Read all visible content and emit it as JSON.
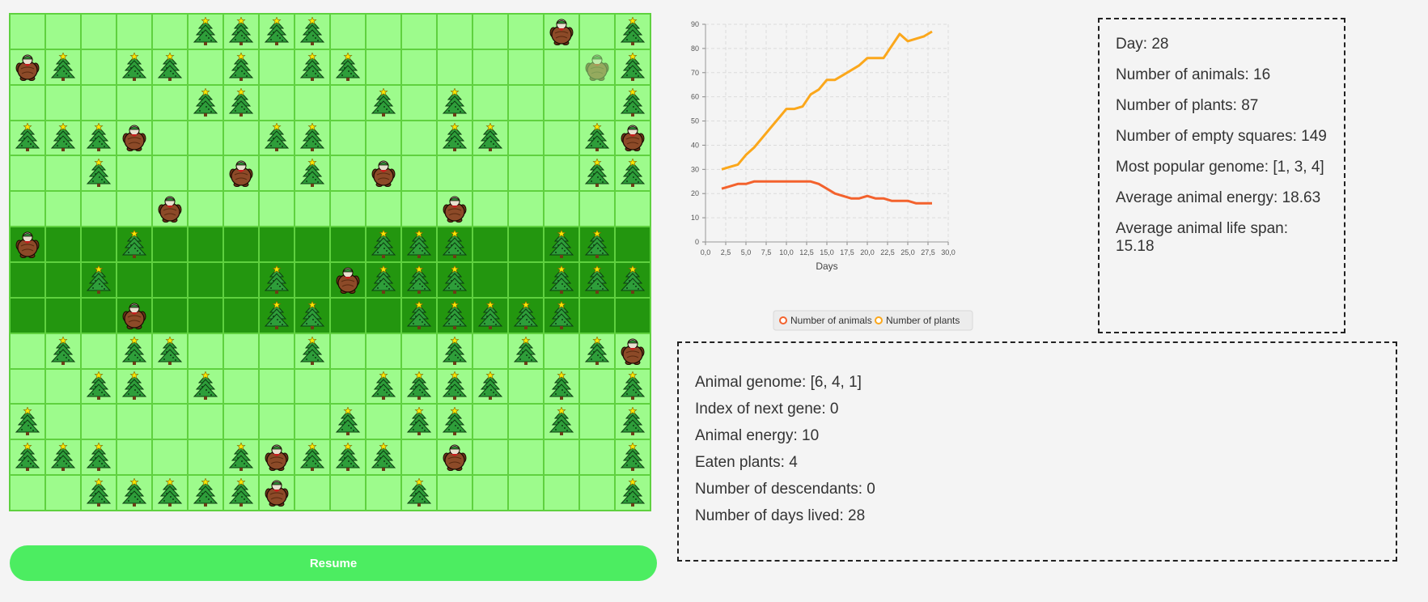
{
  "board": {
    "cols": 18,
    "rows": 14,
    "jungle_rows": [
      6,
      7,
      8
    ],
    "trees": [
      [
        0,
        5
      ],
      [
        0,
        6
      ],
      [
        0,
        7
      ],
      [
        0,
        8
      ],
      [
        0,
        17
      ],
      [
        1,
        1
      ],
      [
        1,
        3
      ],
      [
        1,
        4
      ],
      [
        1,
        6
      ],
      [
        1,
        8
      ],
      [
        1,
        9
      ],
      [
        1,
        17
      ],
      [
        2,
        5
      ],
      [
        2,
        6
      ],
      [
        2,
        10
      ],
      [
        2,
        12
      ],
      [
        2,
        17
      ],
      [
        3,
        0
      ],
      [
        3,
        1
      ],
      [
        3,
        2
      ],
      [
        3,
        7
      ],
      [
        3,
        8
      ],
      [
        3,
        12
      ],
      [
        3,
        13
      ],
      [
        3,
        16
      ],
      [
        4,
        2
      ],
      [
        4,
        8
      ],
      [
        4,
        16
      ],
      [
        4,
        17
      ],
      [
        6,
        3
      ],
      [
        6,
        10
      ],
      [
        6,
        11
      ],
      [
        6,
        12
      ],
      [
        6,
        15
      ],
      [
        6,
        16
      ],
      [
        7,
        2
      ],
      [
        7,
        7
      ],
      [
        7,
        10
      ],
      [
        7,
        11
      ],
      [
        7,
        12
      ],
      [
        7,
        15
      ],
      [
        7,
        16
      ],
      [
        7,
        17
      ],
      [
        8,
        7
      ],
      [
        8,
        8
      ],
      [
        8,
        11
      ],
      [
        8,
        12
      ],
      [
        8,
        13
      ],
      [
        8,
        14
      ],
      [
        8,
        15
      ],
      [
        9,
        1
      ],
      [
        9,
        3
      ],
      [
        9,
        4
      ],
      [
        9,
        8
      ],
      [
        9,
        12
      ],
      [
        9,
        14
      ],
      [
        9,
        16
      ],
      [
        10,
        2
      ],
      [
        10,
        3
      ],
      [
        10,
        5
      ],
      [
        10,
        10
      ],
      [
        10,
        11
      ],
      [
        10,
        12
      ],
      [
        10,
        13
      ],
      [
        10,
        15
      ],
      [
        10,
        17
      ],
      [
        11,
        0
      ],
      [
        11,
        9
      ],
      [
        11,
        11
      ],
      [
        11,
        12
      ],
      [
        11,
        15
      ],
      [
        11,
        17
      ],
      [
        12,
        0
      ],
      [
        12,
        1
      ],
      [
        12,
        2
      ],
      [
        12,
        6
      ],
      [
        12,
        8
      ],
      [
        12,
        9
      ],
      [
        12,
        10
      ],
      [
        12,
        17
      ],
      [
        13,
        2
      ],
      [
        13,
        3
      ],
      [
        13,
        4
      ],
      [
        13,
        5
      ],
      [
        13,
        6
      ],
      [
        13,
        11
      ],
      [
        13,
        17
      ]
    ],
    "animals": [
      [
        0,
        15
      ],
      [
        1,
        0
      ],
      [
        3,
        3
      ],
      [
        3,
        17
      ],
      [
        4,
        6
      ],
      [
        4,
        10
      ],
      [
        5,
        4
      ],
      [
        5,
        12
      ],
      [
        6,
        0
      ],
      [
        7,
        9
      ],
      [
        8,
        3
      ],
      [
        9,
        17
      ],
      [
        12,
        7
      ],
      [
        12,
        12
      ],
      [
        13,
        7
      ]
    ],
    "selected_animal": [
      1,
      16
    ],
    "tree_icon": "christmas-tree-icon",
    "animal_icon": "turtle-icon",
    "colors": {
      "field": "#9dfb8c",
      "jungle": "#23960f",
      "grid": "#5fd13f"
    }
  },
  "controls": {
    "resume_label": "Resume"
  },
  "chart_data": {
    "type": "line",
    "xlabel": "Days",
    "ylabel": "",
    "xlim": [
      0,
      30
    ],
    "ylim": [
      0,
      90
    ],
    "x_ticks": [
      "0,0",
      "2,5",
      "5,0",
      "7,5",
      "10,0",
      "12,5",
      "15,0",
      "17,5",
      "20,0",
      "22,5",
      "25,0",
      "27,5",
      "30,0"
    ],
    "y_ticks": [
      "0",
      "10",
      "20",
      "30",
      "40",
      "50",
      "60",
      "70",
      "80",
      "90"
    ],
    "grid": true,
    "legend": "bottom",
    "series": [
      {
        "name": "Number of animals",
        "color": "#f3622d",
        "x": [
          2,
          3,
          4,
          5,
          6,
          7,
          8,
          9,
          10,
          11,
          12,
          13,
          14,
          15,
          16,
          17,
          18,
          19,
          20,
          21,
          22,
          23,
          24,
          25,
          26,
          27,
          28
        ],
        "values": [
          22,
          23,
          24,
          24,
          25,
          25,
          25,
          25,
          25,
          25,
          25,
          25,
          24,
          22,
          20,
          19,
          18,
          18,
          19,
          18,
          18,
          17,
          17,
          17,
          16,
          16,
          16
        ]
      },
      {
        "name": "Number of plants",
        "color": "#fba71b",
        "x": [
          2,
          3,
          4,
          5,
          6,
          7,
          8,
          9,
          10,
          11,
          12,
          13,
          14,
          15,
          16,
          17,
          18,
          19,
          20,
          21,
          22,
          23,
          24,
          25,
          26,
          27,
          28
        ],
        "values": [
          30,
          31,
          32,
          36,
          39,
          43,
          47,
          51,
          55,
          55,
          56,
          61,
          63,
          67,
          67,
          69,
          71,
          73,
          76,
          76,
          76,
          81,
          86,
          83,
          84,
          85,
          87
        ]
      }
    ]
  },
  "stats": {
    "day": "Day: 28",
    "animals": "Number of animals: 16",
    "plants": "Number of plants: 87",
    "empty": "Number of empty squares: 149",
    "genome": "Most popular genome: [1, 3, 4]",
    "energy": "Average animal energy: 18.63",
    "lifespan": "Average animal life span: 15.18"
  },
  "animal": {
    "genome": "Animal genome: [6, 4, 1]",
    "next_gene": "Index of next gene: 0",
    "energy": "Animal energy: 10",
    "eaten": "Eaten plants: 4",
    "descendants": "Number of descendants: 0",
    "days": "Number of days lived: 28"
  }
}
